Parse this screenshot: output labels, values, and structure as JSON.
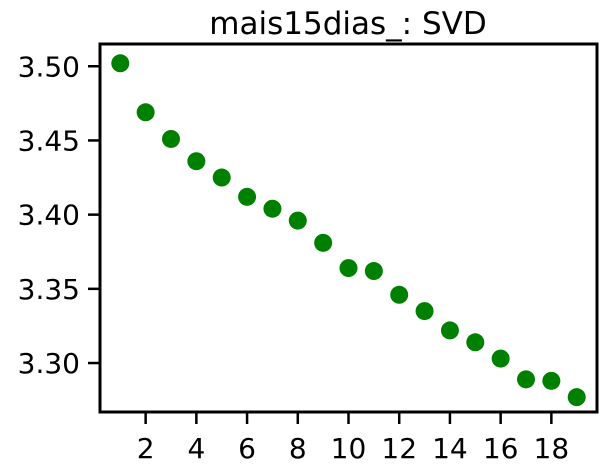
{
  "chart_data": {
    "type": "scatter",
    "title": "mais15dias_: SVD",
    "xlabel": "",
    "ylabel": "",
    "x": [
      1,
      2,
      3,
      4,
      5,
      6,
      7,
      8,
      9,
      10,
      11,
      12,
      13,
      14,
      15,
      16,
      17,
      18,
      19
    ],
    "y": [
      3.502,
      3.469,
      3.451,
      3.436,
      3.425,
      3.412,
      3.404,
      3.396,
      3.381,
      3.364,
      3.362,
      3.346,
      3.335,
      3.322,
      3.314,
      3.303,
      3.289,
      3.288,
      3.277
    ],
    "xlim": [
      0.2,
      19.8
    ],
    "ylim": [
      3.267,
      3.515
    ],
    "xticks": [
      2,
      4,
      6,
      8,
      10,
      12,
      14,
      16,
      18
    ],
    "yticks": [
      3.3,
      3.35,
      3.4,
      3.45,
      3.5
    ],
    "ytick_labels": [
      "3.30",
      "3.35",
      "3.40",
      "3.45",
      "3.50"
    ],
    "grid": false,
    "marker_color": "#008000"
  }
}
